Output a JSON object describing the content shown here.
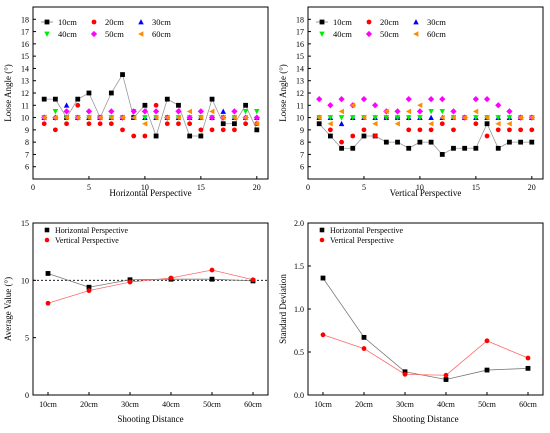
{
  "chart_data": [
    {
      "type": "scatter",
      "xlabel": "Horizontal Perspective",
      "ylabel": "Loose Angle (°)",
      "xlim": [
        0,
        21
      ],
      "ylim": [
        5,
        19
      ],
      "xticks": [
        0,
        5,
        10,
        15,
        20
      ],
      "yticks": [
        6,
        7,
        8,
        9,
        10,
        11,
        12,
        13,
        14,
        15,
        16,
        17,
        18
      ],
      "legend_position": "top-left",
      "x": [
        1,
        2,
        3,
        4,
        5,
        6,
        7,
        8,
        9,
        10,
        11,
        12,
        13,
        14,
        15,
        16,
        17,
        18,
        19,
        20
      ],
      "series": [
        {
          "name": "10cm",
          "color": "#000000",
          "marker": "square",
          "line": true,
          "values": [
            11.5,
            11.5,
            10,
            11.5,
            12,
            10,
            12,
            13.5,
            10,
            11,
            8.5,
            11.5,
            11,
            8.5,
            8.5,
            11.5,
            9.5,
            9.5,
            11,
            9
          ]
        },
        {
          "name": "20cm",
          "color": "#ff0000",
          "marker": "circle",
          "values": [
            9.5,
            9,
            9.5,
            11,
            9.5,
            9.5,
            9.5,
            9,
            8.5,
            8.5,
            11,
            9.5,
            9.5,
            9.5,
            9,
            9,
            9,
            9,
            9.5,
            9.5
          ]
        },
        {
          "name": "30cm",
          "color": "#0000ff",
          "marker": "triangle-up",
          "values": [
            10,
            10,
            11,
            10,
            10,
            10,
            10,
            10,
            10,
            10,
            10,
            10,
            10,
            10,
            10,
            10,
            10.5,
            10,
            10,
            10
          ]
        },
        {
          "name": "40cm",
          "color": "#00ee00",
          "marker": "triangle-down",
          "values": [
            10,
            10.5,
            10,
            10,
            10,
            10,
            10,
            10,
            10.5,
            10,
            10,
            10,
            10,
            10,
            10,
            10,
            10,
            10,
            10.5,
            10.5
          ]
        },
        {
          "name": "50cm",
          "color": "#ff00ff",
          "marker": "diamond",
          "values": [
            10,
            10,
            10.5,
            10,
            10.5,
            10,
            10.5,
            10,
            10.5,
            10.5,
            10.5,
            10,
            10.5,
            10,
            10.5,
            10,
            10,
            10.5,
            10,
            10
          ]
        },
        {
          "name": "60cm",
          "color": "#ff8c00",
          "marker": "triangle-left",
          "values": [
            10,
            10,
            10,
            10,
            10,
            10,
            10,
            10,
            10,
            9.5,
            10,
            10,
            10,
            10.5,
            10,
            10.5,
            10,
            10,
            10,
            9.5
          ]
        }
      ]
    },
    {
      "type": "scatter",
      "xlabel": "Vertical Perspective",
      "ylabel": "Loose Angle (°)",
      "xlim": [
        0,
        21
      ],
      "ylim": [
        5,
        19
      ],
      "xticks": [
        0,
        5,
        10,
        15,
        20
      ],
      "yticks": [
        6,
        7,
        8,
        9,
        10,
        11,
        12,
        13,
        14,
        15,
        16,
        17,
        18
      ],
      "legend_position": "top-left",
      "x": [
        1,
        2,
        3,
        4,
        5,
        6,
        7,
        8,
        9,
        10,
        11,
        12,
        13,
        14,
        15,
        16,
        17,
        18,
        19,
        20
      ],
      "series": [
        {
          "name": "10cm",
          "color": "#000000",
          "marker": "square",
          "line": true,
          "values": [
            9.5,
            8.5,
            7.5,
            7.5,
            8.5,
            8.5,
            8,
            8,
            7.5,
            8,
            8,
            7,
            7.5,
            7.5,
            7.5,
            9.5,
            7.5,
            8,
            8,
            8
          ]
        },
        {
          "name": "20cm",
          "color": "#ff0000",
          "marker": "circle",
          "values": [
            10,
            9,
            8,
            8.5,
            9,
            8.5,
            10,
            10,
            9,
            9,
            9,
            9.5,
            9,
            10,
            9.5,
            8.5,
            9,
            9,
            9,
            9
          ]
        },
        {
          "name": "30cm",
          "color": "#0000ff",
          "marker": "triangle-up",
          "values": [
            10,
            10,
            9.5,
            10,
            10,
            10,
            10,
            10,
            10,
            10,
            10,
            10,
            10,
            10,
            10,
            10,
            10,
            10,
            10,
            10
          ]
        },
        {
          "name": "40cm",
          "color": "#00ee00",
          "marker": "triangle-down",
          "values": [
            10,
            10,
            10,
            10,
            10,
            10,
            10,
            10,
            10,
            10,
            10.5,
            10.5,
            10,
            10,
            10,
            10,
            10,
            10,
            10,
            10
          ]
        },
        {
          "name": "50cm",
          "color": "#ff00ff",
          "marker": "diamond",
          "values": [
            11.5,
            11,
            11.5,
            11,
            11.5,
            11,
            10.5,
            10.5,
            11.5,
            10.5,
            11.5,
            11.5,
            10.5,
            10,
            11.5,
            11.5,
            11,
            10.5,
            10,
            10
          ]
        },
        {
          "name": "60cm",
          "color": "#ff8c00",
          "marker": "triangle-left",
          "values": [
            10,
            9.5,
            10.5,
            11,
            10,
            9.5,
            10.5,
            9.5,
            10.5,
            11,
            9.5,
            10,
            10,
            10,
            10.5,
            10,
            9.5,
            9.5,
            10,
            10
          ]
        }
      ]
    },
    {
      "type": "line",
      "xlabel": "Shooting Distance",
      "ylabel": "Average Value (°)",
      "categories": [
        "10cm",
        "20cm",
        "30cm",
        "40cm",
        "50cm",
        "60cm"
      ],
      "ylim": [
        0,
        15
      ],
      "yticks": [
        0,
        5,
        10,
        15
      ],
      "reference_line": 10,
      "legend_position": "top-left",
      "series": [
        {
          "name": "Horizontal Perspective",
          "color": "#000000",
          "marker": "square",
          "values": [
            10.6,
            9.4,
            10.05,
            10.1,
            10.1,
            9.95
          ]
        },
        {
          "name": "Vertical Perspective",
          "color": "#ff0000",
          "marker": "circle",
          "values": [
            8,
            9.1,
            9.85,
            10.2,
            10.9,
            10.05
          ]
        }
      ]
    },
    {
      "type": "line",
      "xlabel": "Shooting Distance",
      "ylabel": "Standard Deviation",
      "categories": [
        "10cm",
        "20cm",
        "30cm",
        "40cm",
        "50cm",
        "60cm"
      ],
      "ylim": [
        0,
        2.0
      ],
      "yticks": [
        0.0,
        0.5,
        1.0,
        1.5,
        2.0
      ],
      "legend_position": "top-left",
      "series": [
        {
          "name": "Horizontal Perspective",
          "color": "#000000",
          "marker": "square",
          "values": [
            1.36,
            0.67,
            0.27,
            0.18,
            0.29,
            0.31
          ]
        },
        {
          "name": "Vertical Perspective",
          "color": "#ff0000",
          "marker": "circle",
          "values": [
            0.7,
            0.54,
            0.24,
            0.23,
            0.63,
            0.43
          ]
        }
      ]
    }
  ]
}
